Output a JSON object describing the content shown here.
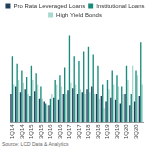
{
  "chart_data": {
    "type": "bar",
    "source": "Source: LCD Data & Analytics",
    "categories": [
      "1Q14",
      null,
      "3Q14",
      null,
      "1Q15",
      null,
      "3Q15",
      null,
      "1Q16",
      null,
      "3Q16",
      null,
      "1Q17",
      null,
      "3Q17",
      null,
      "1Q18",
      null,
      "3Q18",
      null,
      "1Q19",
      null,
      "3Q19",
      null,
      "1Q20",
      null,
      "3Q20",
      null
    ],
    "series": [
      {
        "name": "Pro Rata Leveraged Loans",
        "color": "#1f3f5b",
        "values": [
          30,
          38,
          32,
          35,
          28,
          33,
          25,
          22,
          18,
          26,
          24,
          30,
          34,
          36,
          30,
          32,
          35,
          38,
          30,
          28,
          22,
          26,
          24,
          20,
          30,
          18,
          22,
          28
        ]
      },
      {
        "name": "Institutional Loans",
        "color": "#1b8c7c",
        "values": [
          70,
          62,
          55,
          48,
          60,
          52,
          38,
          20,
          25,
          45,
          50,
          58,
          92,
          70,
          65,
          75,
          80,
          72,
          60,
          40,
          45,
          55,
          50,
          38,
          60,
          30,
          55,
          85
        ]
      },
      {
        "name": "High Yield Bonds",
        "color": "#a9d8d0",
        "values": [
          40,
          45,
          42,
          30,
          45,
          40,
          25,
          18,
          30,
          40,
          38,
          30,
          42,
          40,
          35,
          30,
          32,
          30,
          25,
          15,
          35,
          40,
          38,
          30,
          45,
          60,
          50,
          40
        ]
      }
    ],
    "ylim": [
      0,
      100
    ],
    "yticks": [
      0,
      25,
      50,
      75,
      100
    ],
    "grid": false,
    "legend": "top",
    "tick_labels": "x"
  }
}
